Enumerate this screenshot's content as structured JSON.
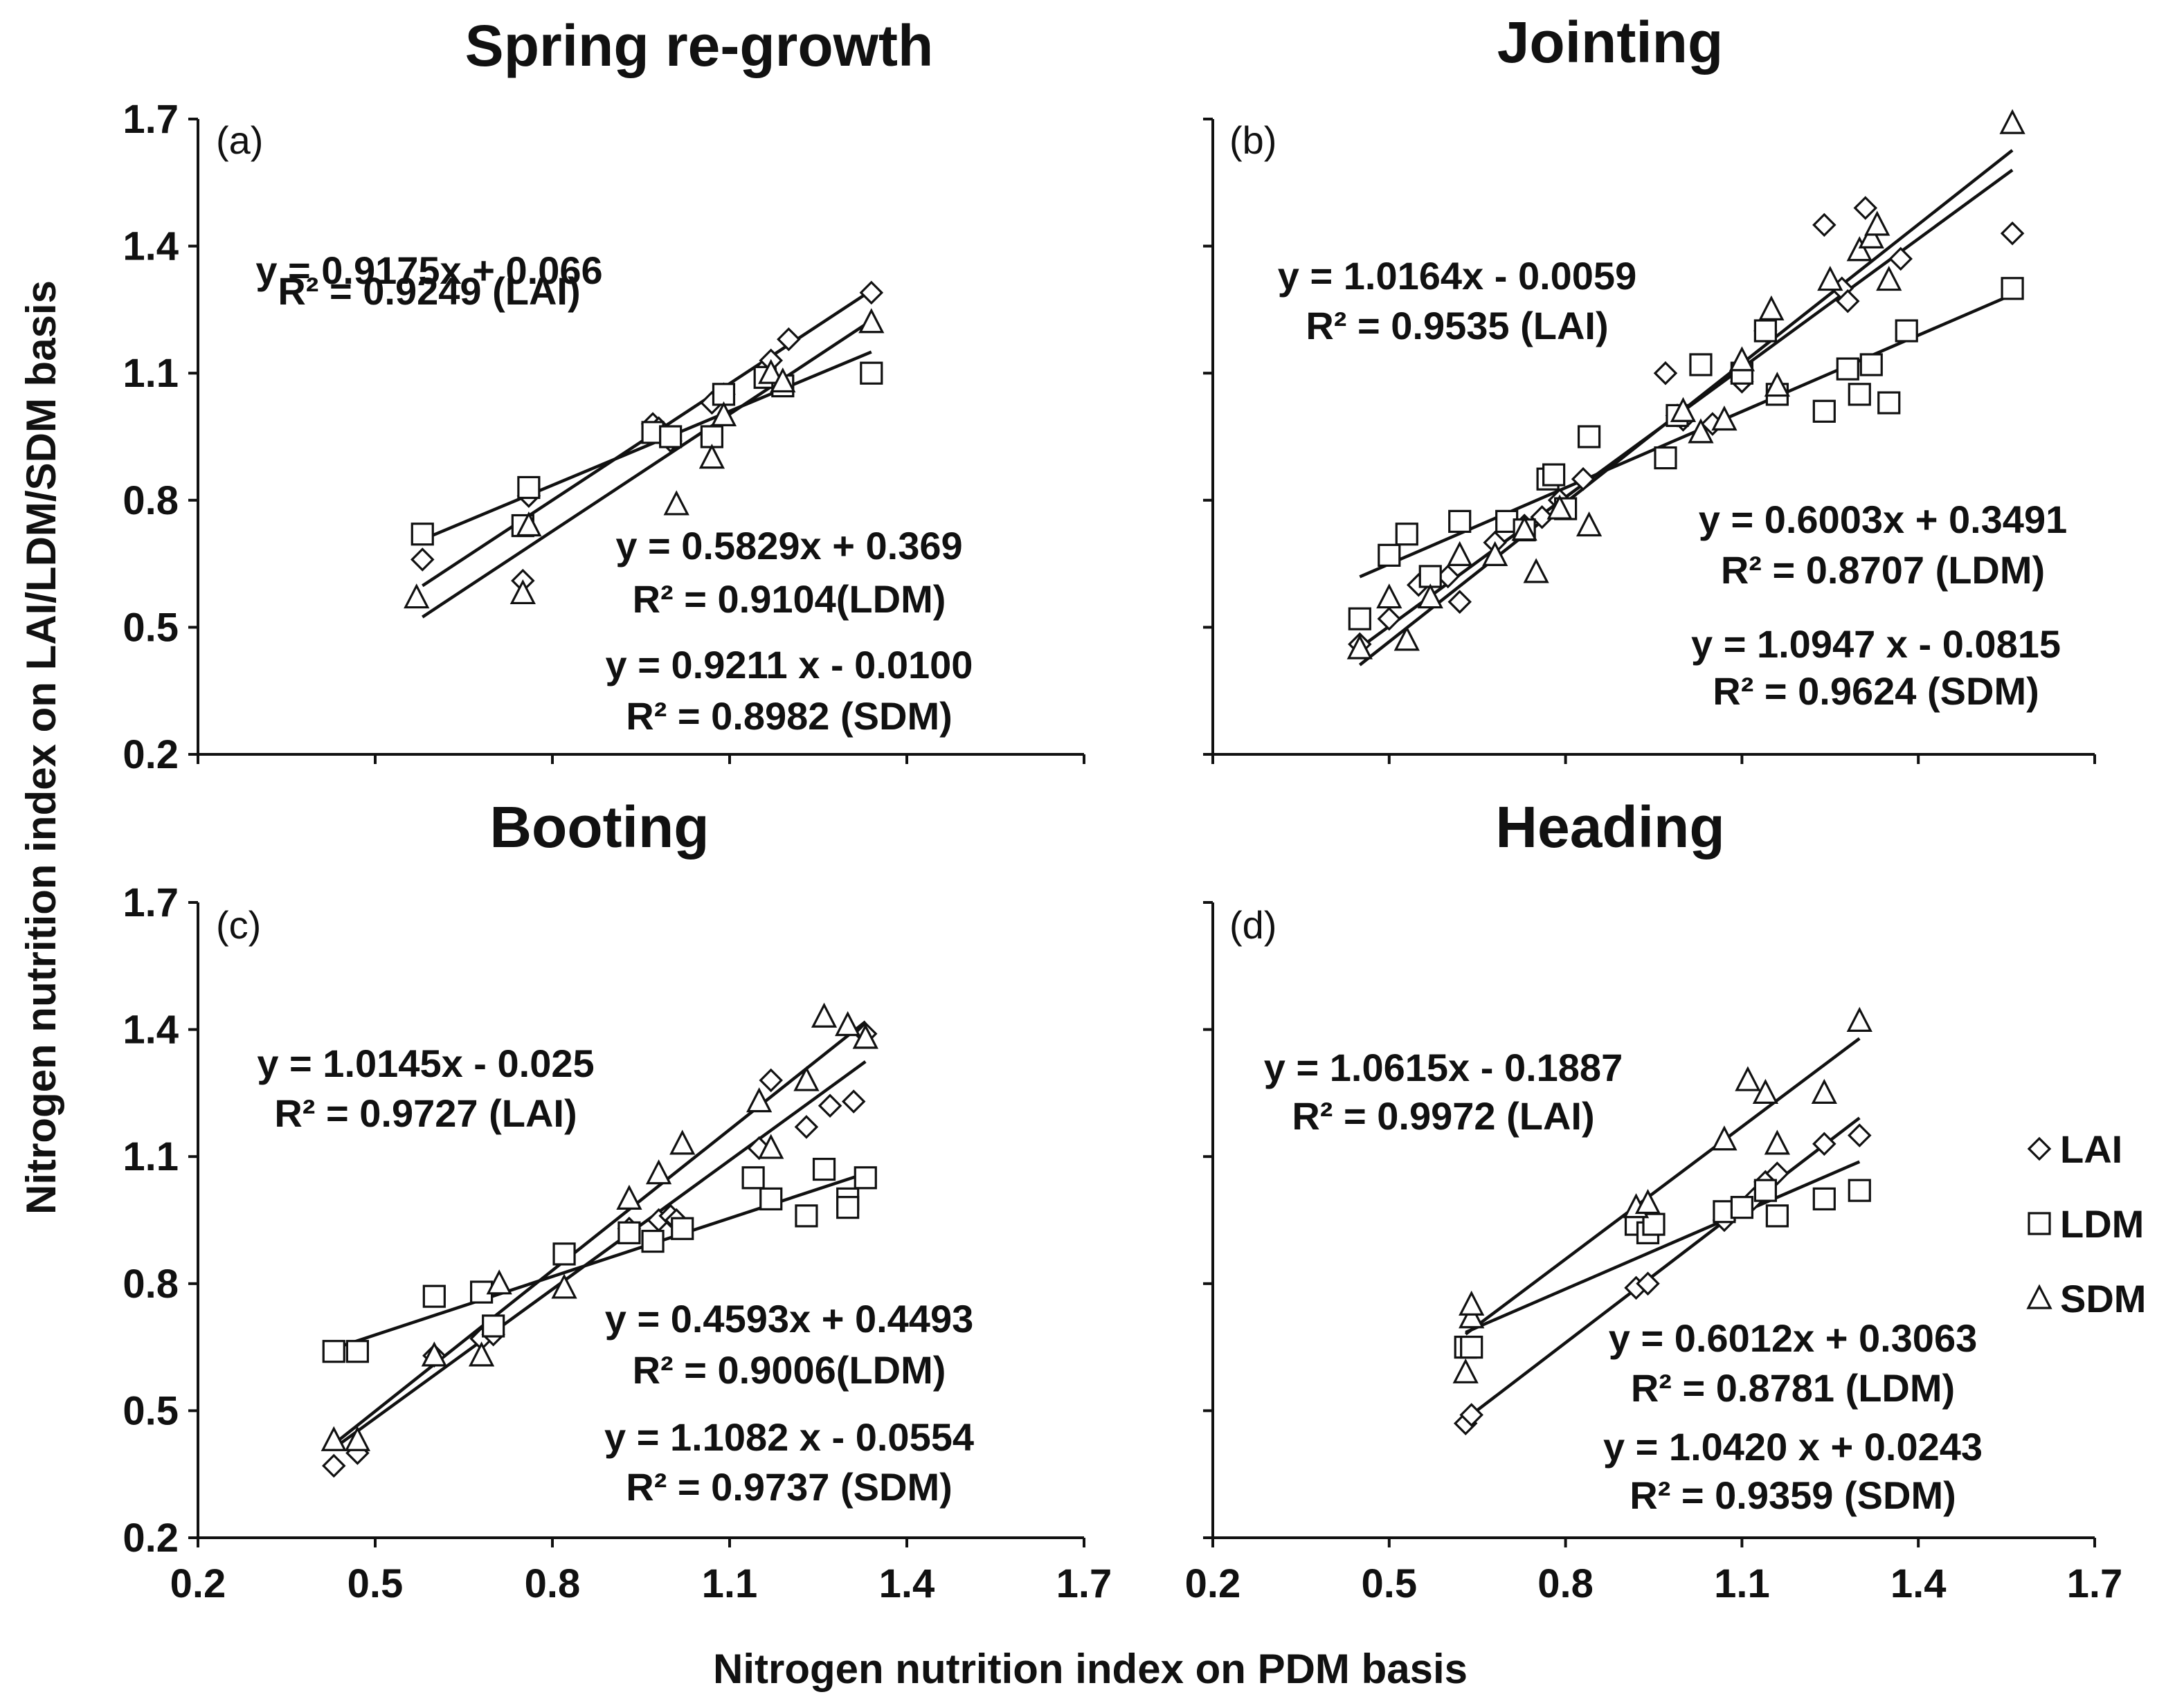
{
  "figure": {
    "xlabel": "Nitrogen nutrition index on PDM basis",
    "ylabel": "Nitrogen nutrition index on LAI/LDM/SDM basis"
  },
  "legend": {
    "items": [
      {
        "label": "LAI",
        "marker": "diamond"
      },
      {
        "label": "LDM",
        "marker": "square"
      },
      {
        "label": "SDM",
        "marker": "triangle"
      }
    ]
  },
  "colors": {
    "ink": "#111111",
    "background": "#ffffff"
  },
  "chart_data": [
    {
      "type": "scatter",
      "panel_label": "(a)",
      "title": "Spring re-growth",
      "xlim": [
        0.2,
        1.7
      ],
      "ylim": [
        0.2,
        1.7
      ],
      "xticks": [
        "0.2",
        "0.5",
        "0.8",
        "1.1",
        "1.4",
        "1.7"
      ],
      "yticks": [
        "0.2",
        "0.5",
        "0.8",
        "1.1",
        "1.4",
        "1.7"
      ],
      "series": [
        {
          "name": "LAI",
          "marker": "diamond",
          "points": [
            [
              0.58,
              0.66
            ],
            [
              0.76,
              0.81
            ],
            [
              0.75,
              0.61
            ],
            [
              0.97,
              0.98
            ],
            [
              0.98,
              0.97
            ],
            [
              1.0,
              0.94
            ],
            [
              1.07,
              1.03
            ],
            [
              1.09,
              1.05
            ],
            [
              1.16,
              1.11
            ],
            [
              1.17,
              1.13
            ],
            [
              1.2,
              1.18
            ],
            [
              1.34,
              1.29
            ]
          ],
          "fit": {
            "slope": 0.9175,
            "intercept": 0.066,
            "xrange": [
              0.58,
              1.34
            ]
          }
        },
        {
          "name": "LDM",
          "marker": "square",
          "points": [
            [
              0.58,
              0.72
            ],
            [
              0.76,
              0.83
            ],
            [
              0.75,
              0.74
            ],
            [
              0.97,
              0.96
            ],
            [
              1.0,
              0.95
            ],
            [
              1.07,
              0.95
            ],
            [
              1.09,
              1.05
            ],
            [
              1.16,
              1.09
            ],
            [
              1.19,
              1.07
            ],
            [
              1.34,
              1.1
            ]
          ],
          "fit": {
            "slope": 0.5829,
            "intercept": 0.369,
            "xrange": [
              0.58,
              1.34
            ]
          }
        },
        {
          "name": "SDM",
          "marker": "triangle",
          "points": [
            [
              0.57,
              0.57
            ],
            [
              0.76,
              0.74
            ],
            [
              0.75,
              0.58
            ],
            [
              1.01,
              0.79
            ],
            [
              1.07,
              0.9
            ],
            [
              1.09,
              1.0
            ],
            [
              1.17,
              1.1
            ],
            [
              1.19,
              1.08
            ],
            [
              1.34,
              1.22
            ]
          ],
          "fit": {
            "slope": 0.9211,
            "intercept": -0.01,
            "xrange": [
              0.58,
              1.34
            ]
          }
        }
      ],
      "equations": [
        {
          "eq": "y = 0.9175x + 0.066",
          "r2": "R² = 0.9249 (LAI)"
        },
        {
          "eq": "y = 0.5829x + 0.369",
          "r2": "R² = 0.9104(LDM)"
        },
        {
          "eq": "y = 0.9211 x - 0.0100",
          "r2": "R² = 0.8982 (SDM)"
        }
      ]
    },
    {
      "type": "scatter",
      "panel_label": "(b)",
      "title": "Jointing",
      "xlim": [
        0.2,
        1.7
      ],
      "ylim": [
        0.2,
        1.7
      ],
      "xticks": [
        "0.2",
        "0.5",
        "0.8",
        "1.1",
        "1.4",
        "1.7"
      ],
      "yticks": [
        "0.2",
        "0.5",
        "0.8",
        "1.1",
        "1.4",
        "1.7"
      ],
      "series": [
        {
          "name": "LAI",
          "marker": "diamond",
          "points": [
            [
              0.45,
              0.46
            ],
            [
              0.5,
              0.52
            ],
            [
              0.55,
              0.6
            ],
            [
              0.6,
              0.62
            ],
            [
              0.62,
              0.56
            ],
            [
              0.68,
              0.7
            ],
            [
              0.73,
              0.74
            ],
            [
              0.76,
              0.76
            ],
            [
              0.79,
              0.8
            ],
            [
              0.83,
              0.85
            ],
            [
              0.97,
              1.1
            ],
            [
              0.99,
              1.0
            ],
            [
              1.0,
              0.99
            ],
            [
              1.05,
              0.98
            ],
            [
              1.1,
              1.08
            ],
            [
              1.14,
              1.2
            ],
            [
              1.24,
              1.45
            ],
            [
              1.27,
              1.3
            ],
            [
              1.28,
              1.27
            ],
            [
              1.31,
              1.49
            ],
            [
              1.37,
              1.37
            ],
            [
              1.56,
              1.43
            ]
          ],
          "fit": {
            "slope": 1.0164,
            "intercept": -0.0059,
            "xrange": [
              0.45,
              1.56
            ]
          }
        },
        {
          "name": "LDM",
          "marker": "square",
          "points": [
            [
              0.45,
              0.52
            ],
            [
              0.5,
              0.67
            ],
            [
              0.53,
              0.72
            ],
            [
              0.57,
              0.62
            ],
            [
              0.62,
              0.75
            ],
            [
              0.7,
              0.75
            ],
            [
              0.73,
              0.73
            ],
            [
              0.77,
              0.85
            ],
            [
              0.78,
              0.86
            ],
            [
              0.8,
              0.78
            ],
            [
              0.84,
              0.95
            ],
            [
              0.97,
              0.9
            ],
            [
              0.99,
              1.0
            ],
            [
              1.03,
              1.12
            ],
            [
              1.1,
              1.1
            ],
            [
              1.14,
              1.2
            ],
            [
              1.16,
              1.05
            ],
            [
              1.24,
              1.01
            ],
            [
              1.28,
              1.11
            ],
            [
              1.3,
              1.05
            ],
            [
              1.32,
              1.12
            ],
            [
              1.35,
              1.03
            ],
            [
              1.38,
              1.2
            ],
            [
              1.56,
              1.3
            ]
          ],
          "fit": {
            "slope": 0.6003,
            "intercept": 0.3491,
            "xrange": [
              0.45,
              1.56
            ]
          }
        },
        {
          "name": "SDM",
          "marker": "triangle",
          "points": [
            [
              0.45,
              0.45
            ],
            [
              0.5,
              0.57
            ],
            [
              0.53,
              0.47
            ],
            [
              0.57,
              0.57
            ],
            [
              0.62,
              0.67
            ],
            [
              0.68,
              0.67
            ],
            [
              0.73,
              0.73
            ],
            [
              0.75,
              0.63
            ],
            [
              0.79,
              0.78
            ],
            [
              0.84,
              0.74
            ],
            [
              1.0,
              1.01
            ],
            [
              1.03,
              0.96
            ],
            [
              1.07,
              0.99
            ],
            [
              1.1,
              1.13
            ],
            [
              1.15,
              1.25
            ],
            [
              1.16,
              1.07
            ],
            [
              1.25,
              1.32
            ],
            [
              1.3,
              1.39
            ],
            [
              1.32,
              1.42
            ],
            [
              1.33,
              1.45
            ],
            [
              1.35,
              1.32
            ],
            [
              1.56,
              1.69
            ]
          ],
          "fit": {
            "slope": 1.0947,
            "intercept": -0.0815,
            "xrange": [
              0.45,
              1.56
            ]
          }
        }
      ],
      "equations": [
        {
          "eq": "y = 1.0164x - 0.0059",
          "r2": "R² = 0.9535 (LAI)"
        },
        {
          "eq": "y = 0.6003x + 0.3491",
          "r2": "R² = 0.8707 (LDM)"
        },
        {
          "eq": "y = 1.0947 x - 0.0815",
          "r2": "R² = 0.9624 (SDM)"
        }
      ]
    },
    {
      "type": "scatter",
      "panel_label": "(c)",
      "title": "Booting",
      "xlim": [
        0.2,
        1.7
      ],
      "ylim": [
        0.2,
        1.7
      ],
      "xticks": [
        "0.2",
        "0.5",
        "0.8",
        "1.1",
        "1.4",
        "1.7"
      ],
      "yticks": [
        "0.2",
        "0.5",
        "0.8",
        "1.1",
        "1.4",
        "1.7"
      ],
      "series": [
        {
          "name": "LAI",
          "marker": "diamond",
          "points": [
            [
              0.43,
              0.37
            ],
            [
              0.47,
              0.4
            ],
            [
              0.6,
              0.63
            ],
            [
              0.68,
              0.67
            ],
            [
              0.7,
              0.68
            ],
            [
              0.93,
              0.93
            ],
            [
              0.98,
              0.95
            ],
            [
              1.0,
              0.96
            ],
            [
              1.01,
              0.95
            ],
            [
              1.15,
              1.12
            ],
            [
              1.17,
              1.28
            ],
            [
              1.23,
              1.17
            ],
            [
              1.27,
              1.22
            ],
            [
              1.31,
              1.23
            ],
            [
              1.33,
              1.39
            ]
          ],
          "fit": {
            "slope": 1.0145,
            "intercept": -0.025,
            "xrange": [
              0.43,
              1.33
            ]
          }
        },
        {
          "name": "LDM",
          "marker": "square",
          "points": [
            [
              0.43,
              0.64
            ],
            [
              0.47,
              0.64
            ],
            [
              0.6,
              0.77
            ],
            [
              0.68,
              0.78
            ],
            [
              0.7,
              0.7
            ],
            [
              0.82,
              0.87
            ],
            [
              0.93,
              0.92
            ],
            [
              0.97,
              0.9
            ],
            [
              1.02,
              0.93
            ],
            [
              1.14,
              1.05
            ],
            [
              1.17,
              1.0
            ],
            [
              1.23,
              0.96
            ],
            [
              1.26,
              1.07
            ],
            [
              1.3,
              1.0
            ],
            [
              1.3,
              0.98
            ],
            [
              1.33,
              1.05
            ]
          ],
          "fit": {
            "slope": 0.4593,
            "intercept": 0.4493,
            "xrange": [
              0.43,
              1.33
            ]
          }
        },
        {
          "name": "SDM",
          "marker": "triangle",
          "points": [
            [
              0.43,
              0.43
            ],
            [
              0.47,
              0.43
            ],
            [
              0.6,
              0.63
            ],
            [
              0.68,
              0.63
            ],
            [
              0.71,
              0.8
            ],
            [
              0.82,
              0.79
            ],
            [
              0.93,
              1.0
            ],
            [
              0.98,
              1.06
            ],
            [
              1.02,
              1.13
            ],
            [
              1.15,
              1.23
            ],
            [
              1.17,
              1.12
            ],
            [
              1.23,
              1.28
            ],
            [
              1.26,
              1.43
            ],
            [
              1.3,
              1.41
            ],
            [
              1.33,
              1.38
            ]
          ],
          "fit": {
            "slope": 1.1082,
            "intercept": -0.0554,
            "xrange": [
              0.43,
              1.33
            ]
          }
        }
      ],
      "equations": [
        {
          "eq": "y = 1.0145x - 0.025",
          "r2": "R² = 0.9727 (LAI)"
        },
        {
          "eq": "y = 0.4593x + 0.4493",
          "r2": "R² = 0.9006(LDM)"
        },
        {
          "eq": "y = 1.1082 x - 0.0554",
          "r2": "R² = 0.9737 (SDM)"
        }
      ]
    },
    {
      "type": "scatter",
      "panel_label": "(d)",
      "title": "Heading",
      "xlim": [
        0.2,
        1.7
      ],
      "ylim": [
        0.2,
        1.7
      ],
      "xticks": [
        "0.2",
        "0.5",
        "0.8",
        "1.1",
        "1.4",
        "1.7"
      ],
      "yticks": [
        "0.2",
        "0.5",
        "0.8",
        "1.1",
        "1.4",
        "1.7"
      ],
      "series": [
        {
          "name": "LAI",
          "marker": "diamond",
          "points": [
            [
              0.63,
              0.47
            ],
            [
              0.64,
              0.49
            ],
            [
              0.92,
              0.79
            ],
            [
              0.94,
              0.8
            ],
            [
              1.07,
              0.95
            ],
            [
              1.12,
              1.0
            ],
            [
              1.14,
              1.04
            ],
            [
              1.16,
              1.06
            ],
            [
              1.24,
              1.13
            ],
            [
              1.3,
              1.15
            ]
          ],
          "fit": {
            "slope": 1.0615,
            "intercept": -0.1887,
            "xrange": [
              0.63,
              1.3
            ]
          }
        },
        {
          "name": "LDM",
          "marker": "square",
          "points": [
            [
              0.63,
              0.65
            ],
            [
              0.64,
              0.65
            ],
            [
              0.92,
              0.94
            ],
            [
              0.94,
              0.92
            ],
            [
              0.95,
              0.94
            ],
            [
              1.07,
              0.97
            ],
            [
              1.1,
              0.98
            ],
            [
              1.14,
              1.02
            ],
            [
              1.16,
              0.96
            ],
            [
              1.24,
              1.0
            ],
            [
              1.3,
              1.02
            ]
          ],
          "fit": {
            "slope": 0.6012,
            "intercept": 0.3063,
            "xrange": [
              0.63,
              1.3
            ]
          }
        },
        {
          "name": "SDM",
          "marker": "triangle",
          "points": [
            [
              0.63,
              0.59
            ],
            [
              0.64,
              0.72
            ],
            [
              0.64,
              0.75
            ],
            [
              0.92,
              0.98
            ],
            [
              0.94,
              0.99
            ],
            [
              1.07,
              1.14
            ],
            [
              1.11,
              1.28
            ],
            [
              1.14,
              1.25
            ],
            [
              1.16,
              1.13
            ],
            [
              1.24,
              1.25
            ],
            [
              1.3,
              1.42
            ]
          ],
          "fit": {
            "slope": 1.042,
            "intercept": 0.0243,
            "xrange": [
              0.63,
              1.3
            ]
          }
        }
      ],
      "equations": [
        {
          "eq": "y = 1.0615x - 0.1887",
          "r2": "R² = 0.9972 (LAI)"
        },
        {
          "eq": "y = 0.6012x + 0.3063",
          "r2": "R² = 0.8781 (LDM)"
        },
        {
          "eq": "y = 1.0420 x + 0.0243",
          "r2": "R² = 0.9359 (SDM)"
        }
      ]
    }
  ]
}
